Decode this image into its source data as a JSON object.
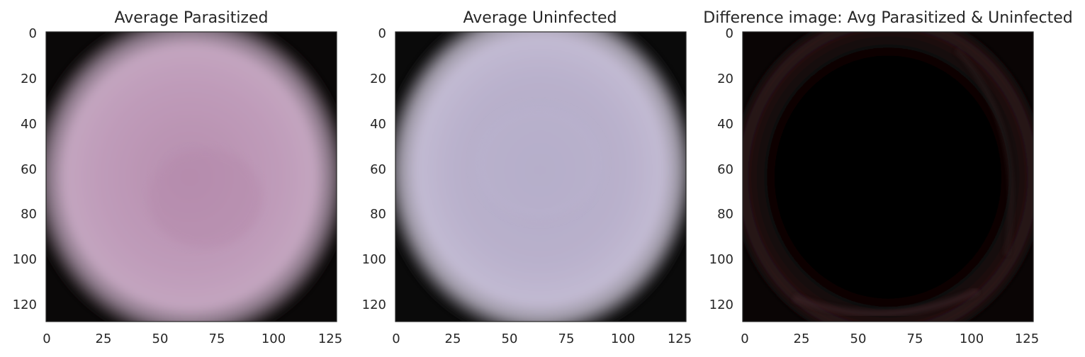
{
  "figure": {
    "panels": [
      {
        "title": "Average Parasitized",
        "x_ticks": [
          "0",
          "25",
          "50",
          "75",
          "100",
          "125"
        ],
        "y_ticks": [
          "0",
          "20",
          "40",
          "60",
          "80",
          "100",
          "120"
        ],
        "image": {
          "kind": "blurred-cell",
          "center_color": "#b891b0",
          "edge_color": "#c8a8c0",
          "background": "#0a0808"
        }
      },
      {
        "title": "Average Uninfected",
        "x_ticks": [
          "0",
          "25",
          "50",
          "75",
          "100",
          "125"
        ],
        "y_ticks": [
          "0",
          "20",
          "40",
          "60",
          "80",
          "100",
          "120"
        ],
        "image": {
          "kind": "blurred-cell",
          "center_color": "#b6aeca",
          "edge_color": "#c4bcd4",
          "background": "#0a0a0a"
        }
      },
      {
        "title": "Difference image: Avg Parasitized & Uninfected",
        "x_ticks": [
          "0",
          "25",
          "50",
          "75",
          "100",
          "125"
        ],
        "y_ticks": [
          "0",
          "20",
          "40",
          "60",
          "80",
          "100",
          "120"
        ],
        "image": {
          "kind": "difference",
          "center_color": "#000000",
          "edge_color": "#2a1414",
          "background": "#0a0505"
        }
      }
    ],
    "axes_color": "#262626"
  }
}
